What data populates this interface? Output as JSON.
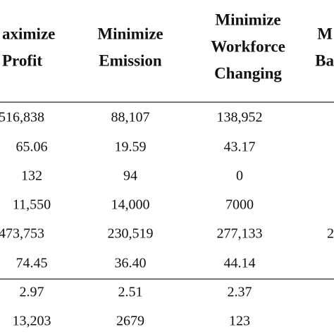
{
  "header": {
    "columns": [
      [
        "aximize",
        "Profit"
      ],
      [
        "Minimize",
        "Emission"
      ],
      [
        "Minimize",
        "Workforce",
        "Changing"
      ],
      [
        "M",
        "Ba"
      ]
    ]
  },
  "table": {
    "rows": [
      [
        "516,838",
        "88,107",
        "138,952"
      ],
      [
        "65.06",
        "19.59",
        "43.17"
      ],
      [
        "132",
        "94",
        "0"
      ],
      [
        "11,550",
        "14,000",
        "7000"
      ],
      [
        "473,753",
        "230,519",
        "277,133",
        "2"
      ],
      [
        "74.45",
        "36.40",
        "44.14"
      ],
      [
        "2.97",
        "2.51",
        "2.37"
      ],
      [
        "13,203",
        "2679",
        "123"
      ]
    ]
  }
}
